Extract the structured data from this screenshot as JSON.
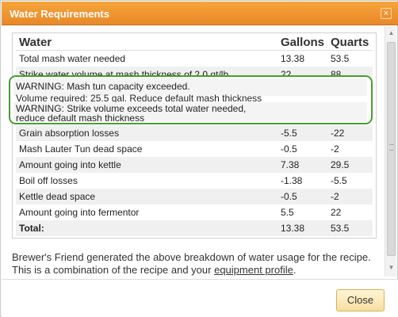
{
  "dialog": {
    "title": "Water Requirements",
    "close_icon_glyph": "×"
  },
  "table": {
    "headers": [
      "Water",
      "Gallons",
      "Quarts"
    ],
    "rows": [
      {
        "label": "Total mash water needed",
        "gallons": "13.38",
        "quarts": "53.5"
      },
      {
        "label": "Strike water volume at mash thickness of 2.0 qt/lb",
        "gallons": "22",
        "quarts": "88"
      },
      {
        "label": "Grain absorption losses",
        "gallons": "-5.5",
        "quarts": "-22"
      },
      {
        "label": "Mash Lauter Tun dead space",
        "gallons": "-0.5",
        "quarts": "-2"
      },
      {
        "label": "Amount going into kettle",
        "gallons": "7.38",
        "quarts": "29.5"
      },
      {
        "label": "Boil off losses",
        "gallons": "-1.38",
        "quarts": "-5.5"
      },
      {
        "label": "Kettle dead space",
        "gallons": "-0.5",
        "quarts": "-2"
      },
      {
        "label": "Amount going into fermentor",
        "gallons": "5.5",
        "quarts": "22"
      }
    ],
    "total": {
      "label": "Total:",
      "gallons": "13.38",
      "quarts": "53.5"
    }
  },
  "warnings": {
    "line1": "WARNING: Mash tun capacity exceeded.",
    "line2": "Volume required: 25.5 gal. Reduce default mash thickness",
    "line3": "WARNING: Strike volume exceeds total water needed,",
    "line4": "reduce default mash thickness"
  },
  "description": {
    "text_before": "Brewer's Friend generated the above breakdown of water usage for the recipe. This is a combination of the recipe and your ",
    "link_text": "equipment profile",
    "text_after": "."
  },
  "footer": {
    "close_label": "Close"
  },
  "colors": {
    "titlebar": "#e8892a",
    "warning_border": "#4a9d34",
    "close_button": "#f6dfa0"
  }
}
